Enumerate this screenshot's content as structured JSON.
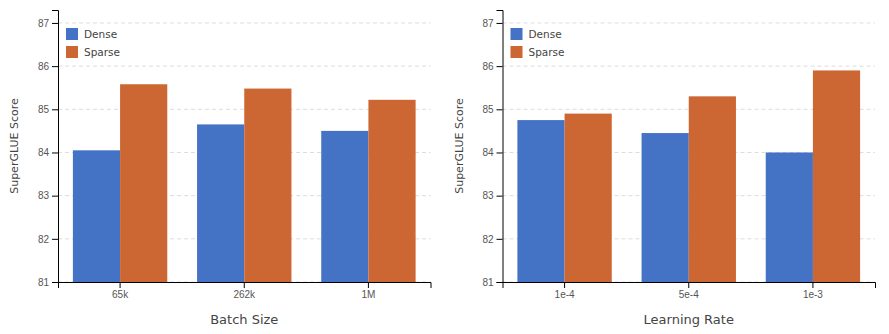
{
  "chart_data": [
    {
      "type": "bar",
      "xlabel": "Batch Size",
      "ylabel": "SuperGLUE Score",
      "categories": [
        "65k",
        "262k",
        "1M"
      ],
      "series": [
        {
          "name": "Dense",
          "color": "#4472C4",
          "values": [
            84.05,
            84.65,
            84.5
          ]
        },
        {
          "name": "Sparse",
          "color": "#CC6633",
          "values": [
            85.58,
            85.48,
            85.22
          ]
        }
      ],
      "ylim": [
        81,
        87.3
      ],
      "yticks": [
        81,
        82,
        83,
        84,
        85,
        86,
        87
      ],
      "grid": true,
      "legend": "upper left"
    },
    {
      "type": "bar",
      "xlabel": "Learning Rate",
      "ylabel": "SuperGLUE Score",
      "categories": [
        "1e-4",
        "5e-4",
        "1e-3"
      ],
      "series": [
        {
          "name": "Dense",
          "color": "#4472C4",
          "values": [
            84.75,
            84.45,
            84.0
          ]
        },
        {
          "name": "Sparse",
          "color": "#CC6633",
          "values": [
            84.9,
            85.3,
            85.9
          ]
        }
      ],
      "ylim": [
        81,
        87.3
      ],
      "yticks": [
        81,
        82,
        83,
        84,
        85,
        86,
        87
      ],
      "grid": true,
      "legend": "upper left"
    }
  ]
}
